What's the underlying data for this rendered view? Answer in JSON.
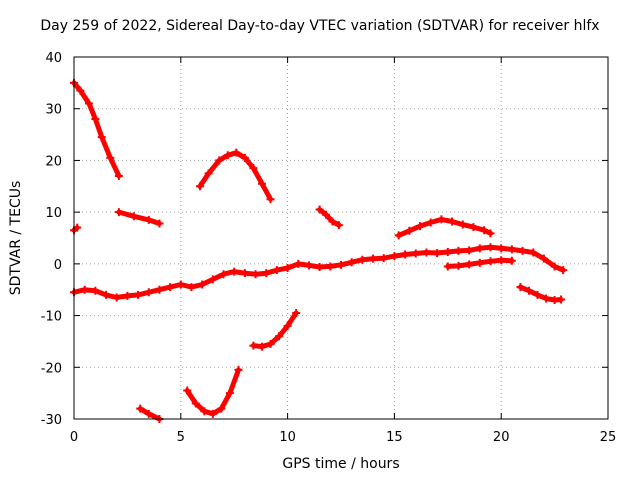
{
  "chart_data": {
    "type": "line",
    "title": "Day 259 of 2022, Sidereal Day-to-day VTEC variation (SDTVAR) for receiver hlfx",
    "xlabel": "GPS time / hours",
    "ylabel": "SDTVAR / TECUs",
    "xlim": [
      0,
      25
    ],
    "ylim": [
      -30,
      40
    ],
    "xticks": [
      "0",
      "5",
      "10",
      "15",
      "20",
      "25"
    ],
    "yticks": [
      "-30",
      "-20",
      "-10",
      "0",
      "10",
      "20",
      "30",
      "40"
    ],
    "grid": true,
    "series_color": "#ff0000",
    "series": [
      {
        "name": "main",
        "x": [
          0,
          0.5,
          1,
          1.5,
          2,
          2.5,
          3,
          3.5,
          4,
          4.5,
          5,
          5.5,
          6,
          6.5,
          7,
          7.5,
          8,
          8.5,
          9,
          9.5,
          10,
          10.5,
          11,
          11.5,
          12,
          12.5,
          13,
          13.5,
          14,
          14.5,
          15,
          15.5,
          16,
          16.5,
          17,
          17.5,
          18,
          18.5,
          19,
          19.5,
          20,
          20.5,
          21,
          21.5,
          22,
          22.5,
          22.9
        ],
        "y": [
          -5.5,
          -5,
          -5.2,
          -6,
          -6.5,
          -6.2,
          -6,
          -5.5,
          -5,
          -4.5,
          -4,
          -4.5,
          -4,
          -3,
          -2,
          -1.5,
          -1.8,
          -2,
          -1.8,
          -1.2,
          -0.8,
          0,
          -0.3,
          -0.6,
          -0.5,
          -0.2,
          0.3,
          0.8,
          1,
          1.1,
          1.5,
          1.8,
          2,
          2.2,
          2.1,
          2.3,
          2.5,
          2.6,
          3,
          3.2,
          3,
          2.8,
          2.5,
          2.2,
          1,
          -0.5,
          -1.2
        ]
      },
      {
        "name": "upper-1",
        "x": [
          0,
          0.3,
          0.7,
          1.0,
          1.3,
          1.7,
          2.1
        ],
        "y": [
          35,
          33.5,
          31,
          28,
          24.5,
          20.5,
          17
        ]
      },
      {
        "name": "upper-2",
        "x": [
          2.1,
          2.8,
          3.5,
          4.0
        ],
        "y": [
          10,
          9.2,
          8.5,
          7.8
        ]
      },
      {
        "name": "upper-3",
        "x": [
          5.9,
          6.3,
          6.8,
          7.2,
          7.6,
          8.0,
          8.4,
          8.8,
          9.2
        ],
        "y": [
          15,
          17.5,
          20,
          21,
          21.5,
          20.5,
          18.5,
          15.5,
          12.5
        ]
      },
      {
        "name": "upper-4",
        "x": [
          11.5,
          11.8,
          12.1,
          12.4
        ],
        "y": [
          10.5,
          9.5,
          8.2,
          7.5
        ]
      },
      {
        "name": "upper-5",
        "x": [
          15.2,
          15.7,
          16.2,
          16.7,
          17.2,
          17.7,
          18.2,
          18.7,
          19.2,
          19.5
        ],
        "y": [
          5.5,
          6.4,
          7.3,
          8,
          8.6,
          8.2,
          7.6,
          7.1,
          6.5,
          5.9
        ]
      },
      {
        "name": "mid-low",
        "x": [
          17.5,
          18,
          18.5,
          19,
          19.5,
          20,
          20.5
        ],
        "y": [
          -0.5,
          -0.4,
          -0.1,
          0.2,
          0.5,
          0.7,
          0.6
        ]
      },
      {
        "name": "right-low",
        "x": [
          20.9,
          21.3,
          21.7,
          22.1,
          22.5,
          22.8
        ],
        "y": [
          -4.5,
          -5.2,
          -6,
          -6.7,
          -7,
          -6.9
        ]
      },
      {
        "name": "lower-1",
        "x": [
          8.4,
          8.8,
          9.2,
          9.6,
          10.0,
          10.4
        ],
        "y": [
          -15.8,
          -16,
          -15.5,
          -14,
          -12,
          -9.5
        ]
      },
      {
        "name": "lower-2",
        "x": [
          5.3,
          5.7,
          6.1,
          6.5,
          6.9,
          7.3,
          7.7
        ],
        "y": [
          -24.5,
          -27,
          -28.5,
          -29,
          -28,
          -25,
          -20.5
        ]
      },
      {
        "name": "lower-3",
        "x": [
          3.1,
          3.5,
          4.0
        ],
        "y": [
          -28,
          -29,
          -30
        ]
      },
      {
        "name": "dot",
        "x": [
          0,
          0.15
        ],
        "y": [
          6.5,
          7
        ]
      }
    ]
  }
}
